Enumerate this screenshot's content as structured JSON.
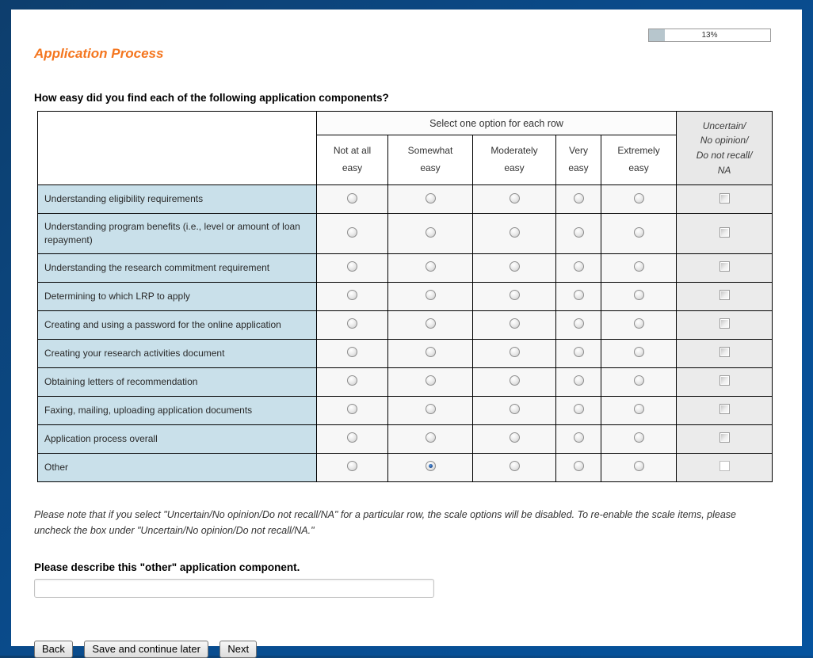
{
  "progress": {
    "label": "13%",
    "percent": 13
  },
  "header": {
    "title": "Application Process"
  },
  "question": "How easy did you find each of the following application components?",
  "matrix": {
    "group_header": "Select one option for each row",
    "uncertain_header": "Uncertain/\nNo opinion/\nDo not recall/\nNA",
    "scale_columns": [
      "Not at all\neasy",
      "Somewhat\neasy",
      "Moderately\neasy",
      "Very\neasy",
      "Extremely\neasy"
    ],
    "rows": [
      {
        "label": "Understanding eligibility requirements",
        "selected": null,
        "uncertain_checked": false
      },
      {
        "label": "Understanding program benefits (i.e., level or amount of loan repayment)",
        "selected": null,
        "uncertain_checked": false
      },
      {
        "label": "Understanding the research commitment requirement",
        "selected": null,
        "uncertain_checked": false
      },
      {
        "label": "Determining to which LRP to apply",
        "selected": null,
        "uncertain_checked": false
      },
      {
        "label": "Creating and using a password for the online application",
        "selected": null,
        "uncertain_checked": false
      },
      {
        "label": "Creating your research activities document",
        "selected": null,
        "uncertain_checked": false
      },
      {
        "label": "Obtaining letters of recommendation",
        "selected": null,
        "uncertain_checked": false
      },
      {
        "label": "Faxing, mailing, uploading application documents",
        "selected": null,
        "uncertain_checked": false
      },
      {
        "label": "Application process overall",
        "selected": null,
        "uncertain_checked": false
      },
      {
        "label": "Other",
        "selected": 1,
        "selected_option": "Somewhat easy",
        "uncertain_checked": false
      }
    ]
  },
  "note": "Please note that if you select \"Uncertain/No opinion/Do not recall/NA\" for a particular row, the scale options will be disabled.  To re-enable the scale items, please uncheck the box under \"Uncertain/No opinion/Do not recall/NA.\"",
  "other_prompt": "Please describe this \"other\" application component.",
  "other_input": {
    "value": "",
    "placeholder": ""
  },
  "buttons": {
    "back": "Back",
    "save": "Save and continue later",
    "next": "Next"
  },
  "colors": {
    "accent": "#F4761F",
    "frame_blue": "#0A4B8B",
    "row_label_bg": "#C9E0EA",
    "scale_cell_bg": "#F7F7F7",
    "uncertain_cell_bg": "#EBEBEB",
    "progress_fill": "#B7C6CD",
    "radio_selected": "#123F86"
  }
}
